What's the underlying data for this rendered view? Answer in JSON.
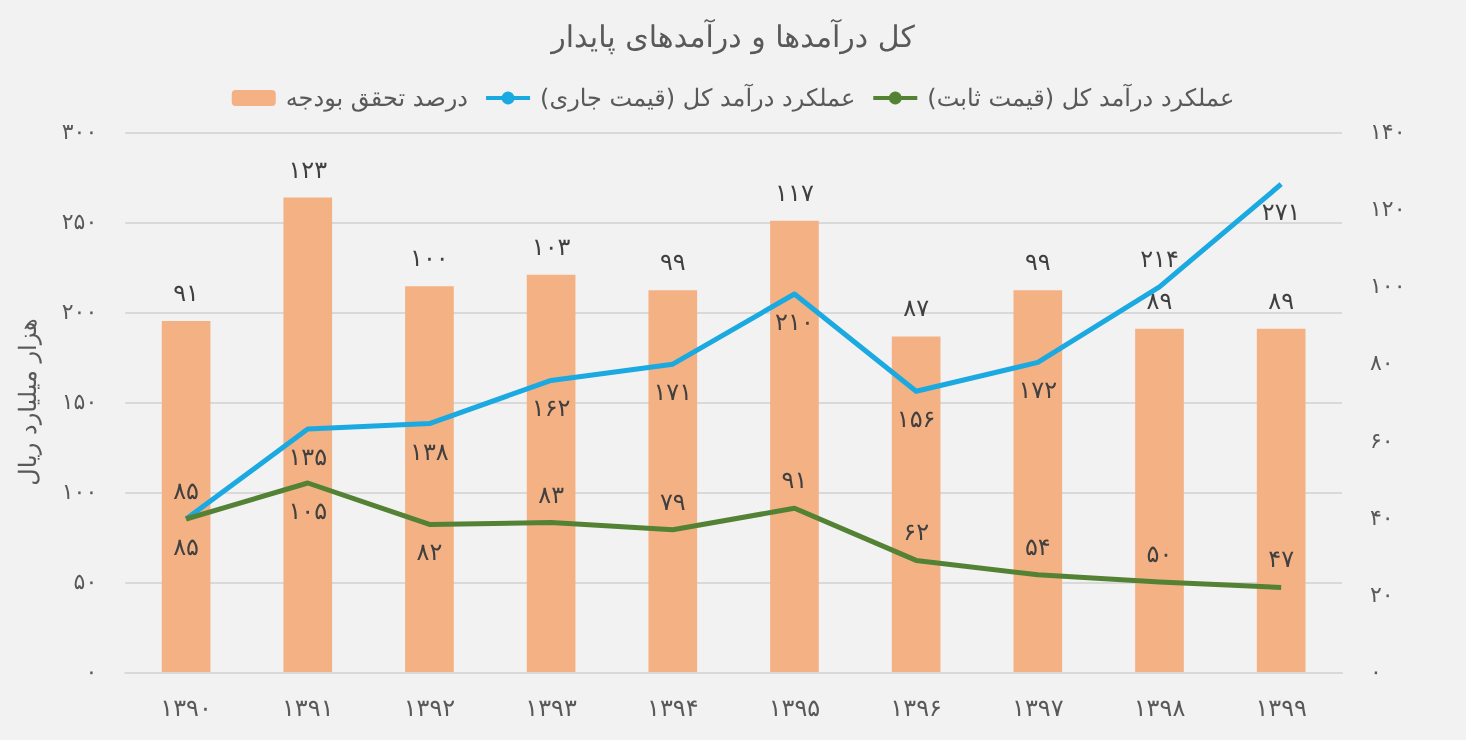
{
  "chart_data": {
    "type": "bar",
    "title": "کل درآمدها و درآمدهای پایدار",
    "ylabel": "هزار میلیارد ریال",
    "categories": [
      "۱۳۹۰",
      "۱۳۹۱",
      "۱۳۹۲",
      "۱۳۹۳",
      "۱۳۹۴",
      "۱۳۹۵",
      "۱۳۹۶",
      "۱۳۹۷",
      "۱۳۹۸",
      "۱۳۹۹"
    ],
    "series": [
      {
        "name": "درصد تحقق بودجه",
        "axis": "y2",
        "color": "#f4b183",
        "values": [
          91,
          123,
          100,
          103,
          99,
          117,
          87,
          99,
          89,
          89
        ],
        "value_labels": [
          "۹۱",
          "۱۲۳",
          "۱۰۰",
          "۱۰۳",
          "۹۹",
          "۱۱۷",
          "۸۷",
          "۹۹",
          "۸۹",
          "۸۹"
        ]
      },
      {
        "name": "عملکرد درآمد کل (قیمت جاری)",
        "type": "line",
        "color": "#1aa9e0",
        "values": [
          85,
          135,
          138,
          162,
          171,
          210,
          156,
          172,
          214,
          271
        ],
        "value_labels": [
          "۸۵",
          "۱۳۵",
          "۱۳۸",
          "۱۶۲",
          "۱۷۱",
          "۲۱۰",
          "۱۵۶",
          "۱۷۲",
          "۲۱۴",
          "۲۷۱"
        ]
      },
      {
        "name": "عملکرد درآمد کل (قیمت ثابت)",
        "type": "line",
        "color": "#548235",
        "values": [
          85,
          105,
          82,
          83,
          79,
          91,
          62,
          54,
          50,
          47
        ],
        "value_labels": [
          "۸۵",
          "۱۰۵",
          "۸۲",
          "۸۳",
          "۷۹",
          "۹۱",
          "۶۲",
          "۵۴",
          "۵۰",
          "۴۷"
        ]
      }
    ],
    "ylim": [
      0,
      300
    ],
    "yticks": [
      {
        "value": 0,
        "label": "۰"
      },
      {
        "value": 50,
        "label": "۵۰"
      },
      {
        "value": 100,
        "label": "۱۰۰"
      },
      {
        "value": 150,
        "label": "۱۵۰"
      },
      {
        "value": 200,
        "label": "۲۰۰"
      },
      {
        "value": 250,
        "label": "۲۵۰"
      },
      {
        "value": 300,
        "label": "۳۰۰"
      }
    ],
    "y2lim": [
      0,
      140
    ],
    "y2ticks": [
      {
        "value": 0,
        "label": "۰"
      },
      {
        "value": 20,
        "label": "۲۰"
      },
      {
        "value": 40,
        "label": "۴۰"
      },
      {
        "value": 60,
        "label": "۶۰"
      },
      {
        "value": 80,
        "label": "۸۰"
      },
      {
        "value": 100,
        "label": "۱۰۰"
      },
      {
        "value": 120,
        "label": "۱۲۰"
      },
      {
        "value": 140,
        "label": "۱۴۰"
      }
    ],
    "grid": "y",
    "legend": "top",
    "marker": "none",
    "line_style": "solid"
  }
}
